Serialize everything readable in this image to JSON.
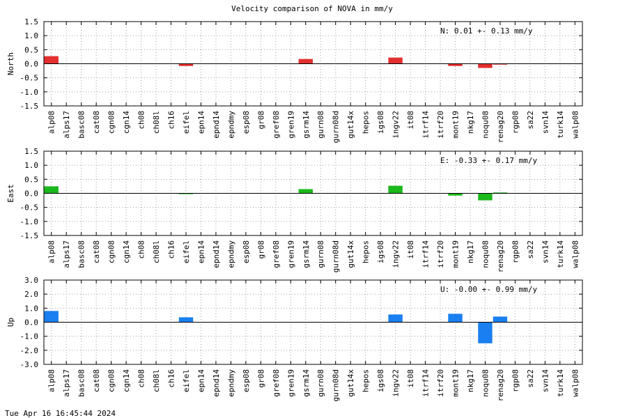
{
  "title": "Velocity comparison of NOVA in mm/y",
  "timestamp": "Tue Apr 16 16:45:44 2024",
  "chart_data": {
    "type": "bar",
    "categories": [
      "alp08",
      "alps17",
      "basc08",
      "cat08",
      "cgn08",
      "cgn14",
      "ch08",
      "ch08l",
      "ch16",
      "eifel",
      "epn14",
      "epnd14",
      "epndmy",
      "esp08",
      "gr08",
      "gref08",
      "gren19",
      "gsrm14",
      "gurn08",
      "gurn08d",
      "gut14x",
      "hepos",
      "igs08",
      "ingv22",
      "it08",
      "itrf14",
      "itrf20",
      "mont19",
      "nkg17",
      "noqu08",
      "renag20",
      "rgp08",
      "sa22",
      "svn14",
      "turk14",
      "walp08"
    ],
    "panels": [
      {
        "ylabel": "North",
        "color": "#e32f2f",
        "ylim": [
          -1.5,
          1.5
        ],
        "ticks": [
          "1.5",
          "1.0",
          "0.5",
          "0.0",
          "-0.5",
          "-1.0",
          "-1.5"
        ],
        "tick_values": [
          1.5,
          1.0,
          0.5,
          0.0,
          -0.5,
          -1.0,
          -1.5
        ],
        "annotation": "N:   0.01 +-  0.13 mm/y",
        "values": [
          0.27,
          0,
          0,
          0,
          0,
          0,
          0,
          0,
          0,
          -0.08,
          0,
          0,
          0,
          0,
          0,
          0,
          0,
          0.17,
          0,
          0,
          0,
          0,
          0,
          0.22,
          0,
          0,
          0,
          -0.08,
          0,
          -0.15,
          -0.03,
          0,
          0,
          0,
          0,
          0
        ]
      },
      {
        "ylabel": "East",
        "color": "#1ab81a",
        "ylim": [
          -1.5,
          1.5
        ],
        "ticks": [
          "1.5",
          "1.0",
          "0.5",
          "0.0",
          "-0.5",
          "-1.0",
          "-1.5"
        ],
        "tick_values": [
          1.5,
          1.0,
          0.5,
          0.0,
          -0.5,
          -1.0,
          -1.5
        ],
        "annotation": "E:  -0.33 +-  0.17 mm/y",
        "values": [
          0.25,
          0,
          0,
          0,
          0,
          0,
          0,
          0,
          0,
          -0.03,
          0,
          0,
          0,
          0,
          0,
          0,
          0,
          0.15,
          0,
          0,
          0,
          0,
          0,
          0.27,
          0,
          0,
          0,
          -0.08,
          0,
          -0.25,
          0.03,
          0,
          0,
          0,
          0,
          0
        ]
      },
      {
        "ylabel": "Up",
        "color": "#1a7ff0",
        "ylim": [
          -3.0,
          3.0
        ],
        "ticks": [
          "3.0",
          "2.0",
          "1.0",
          "0.0",
          "-1.0",
          "-2.0",
          "-3.0"
        ],
        "tick_values": [
          3.0,
          2.0,
          1.0,
          0.0,
          -1.0,
          -2.0,
          -3.0
        ],
        "annotation": "U:  -0.00 +-  0.99 mm/y",
        "values": [
          0.8,
          0,
          0,
          0,
          0,
          0,
          0,
          0,
          0,
          0.35,
          0,
          0,
          0,
          0,
          0,
          0,
          0,
          0,
          0,
          0,
          0,
          0,
          0,
          0.55,
          0,
          0,
          0,
          0.6,
          0,
          -1.5,
          0.4,
          0,
          0,
          0,
          0,
          0
        ]
      }
    ],
    "grid": true
  }
}
